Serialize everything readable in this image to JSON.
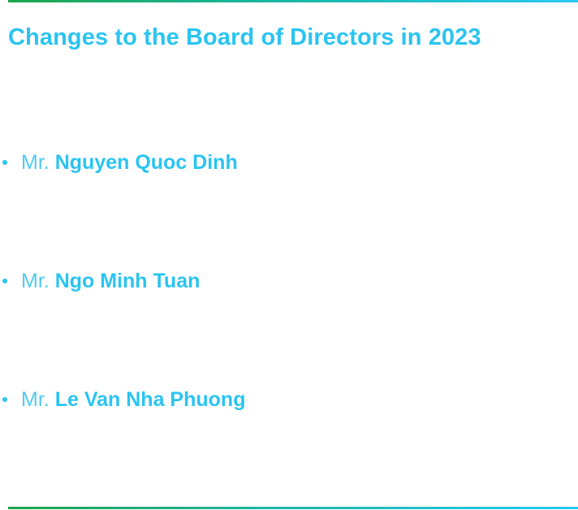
{
  "page": {
    "title": "Changes to the Board of Directors in 2023"
  },
  "members": [
    {
      "honorific": "Mr.",
      "name": "Nguyen Quoc Dinh"
    },
    {
      "honorific": "Mr.",
      "name": "Ngo Minh Tuan"
    },
    {
      "honorific": "Mr.",
      "name": "Le Van Nha Phuong"
    }
  ],
  "colors": {
    "accent": "#2ac4f1",
    "rule_start": "#1aa54a",
    "rule_end": "#29c9f2"
  }
}
